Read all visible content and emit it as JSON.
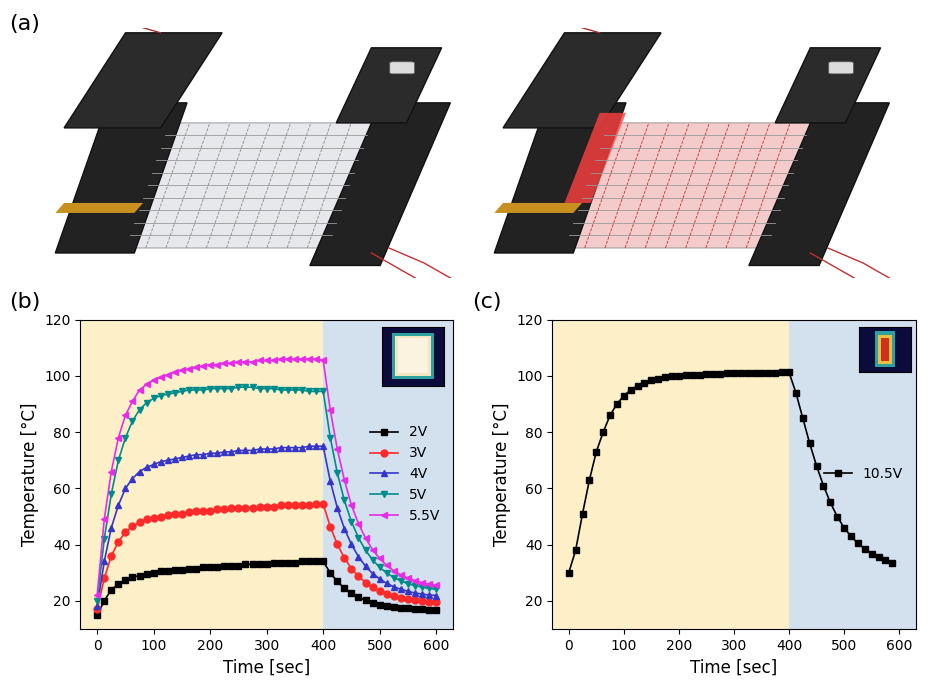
{
  "diagram": {
    "panel_label": "(a)"
  },
  "chart_data": [
    {
      "type": "line",
      "panel_label": "(b)",
      "x_label": "Time [sec]",
      "y_label": "Temperature [°C]",
      "x": [
        0,
        12.5,
        25,
        37.5,
        50,
        62.5,
        75,
        87.5,
        100,
        112.5,
        125,
        137.5,
        150,
        162.5,
        175,
        187.5,
        200,
        212.5,
        225,
        237.5,
        250,
        262.5,
        275,
        287.5,
        300,
        312.5,
        325,
        337.5,
        350,
        362.5,
        375,
        387.5,
        400,
        412.5,
        425,
        437.5,
        450,
        462.5,
        475,
        487.5,
        500,
        512.5,
        525,
        537.5,
        550,
        562.5,
        575,
        587.5,
        600
      ],
      "phase_boundary": 400,
      "xlim": [
        -30,
        630
      ],
      "xticks": [
        0,
        100,
        200,
        300,
        400,
        500,
        600
      ],
      "ylim": [
        10,
        120
      ],
      "yticks": [
        20,
        40,
        60,
        80,
        100,
        120
      ],
      "legend": "center right",
      "series": [
        {
          "name": "2V",
          "color": "#000000",
          "marker": "square",
          "line_style": "solid",
          "values": [
            15,
            20,
            24,
            26,
            27.5,
            28.5,
            29,
            29.5,
            30,
            30.5,
            30.5,
            31,
            31,
            31.5,
            31.5,
            32,
            32,
            32,
            32.5,
            32.5,
            32.5,
            33,
            33,
            33,
            33,
            33.5,
            33.5,
            33.5,
            33.5,
            34,
            34,
            34,
            34,
            30,
            26.9,
            24.5,
            22.7,
            21.3,
            20.2,
            19.3,
            18.7,
            18.2,
            17.8,
            17.5,
            17.3,
            17.1,
            17,
            16.9,
            16.8
          ]
        },
        {
          "name": "3V",
          "color": "#ff2a2a",
          "marker": "circle",
          "line_style": "solid",
          "values": [
            17,
            28,
            36,
            41,
            44.5,
            46.5,
            48,
            49,
            49.5,
            50,
            50.5,
            51,
            51,
            51.5,
            52,
            52,
            52,
            52.5,
            52.5,
            53,
            53,
            53,
            53,
            53.5,
            53.5,
            53.5,
            54,
            54,
            54,
            54,
            54,
            54.5,
            54.5,
            46.4,
            40.1,
            35.3,
            31.5,
            28.7,
            26.5,
            24.8,
            23.4,
            22.4,
            21.6,
            21,
            20.6,
            20.2,
            19.9,
            19.7,
            19.6
          ]
        },
        {
          "name": "4V",
          "color": "#3535c8",
          "marker": "triangle_up",
          "line_style": "solid",
          "values": [
            18,
            34,
            46,
            54,
            60,
            63.5,
            66,
            67.5,
            68.5,
            69.5,
            70,
            70.5,
            71,
            71.5,
            72,
            72,
            72.5,
            72.5,
            73,
            73,
            73.5,
            73.5,
            73.5,
            74,
            74,
            74,
            74.5,
            74.5,
            74.5,
            74.5,
            75,
            75,
            75,
            62.6,
            53.1,
            45.7,
            40.1,
            35.7,
            32.3,
            29.7,
            27.8,
            26.2,
            25,
            24.1,
            23.4,
            22.8,
            22.4,
            22.1,
            21.9
          ]
        },
        {
          "name": "5V",
          "color": "#008b8b",
          "marker": "triangle_down",
          "line_style": "solid",
          "values": [
            20,
            42,
            58,
            70,
            78,
            84,
            88,
            90.5,
            92,
            93,
            93.5,
            94,
            94.5,
            95,
            95,
            95,
            95.5,
            95.5,
            95.5,
            95.5,
            96,
            96,
            96,
            95.5,
            95.5,
            95.5,
            95,
            95,
            95,
            95,
            94.5,
            94.5,
            94.5,
            78.1,
            65.5,
            55.7,
            48.2,
            42.4,
            38,
            34.6,
            31.9,
            29.9,
            28.3,
            27.1,
            26.1,
            25.4,
            24.9,
            24.4,
            24.1
          ]
        },
        {
          "name": "5.5V",
          "color": "#e62ce6",
          "marker": "triangle_left",
          "line_style": "solid",
          "values": [
            22,
            49,
            66,
            78,
            86,
            91,
            95,
            97,
            98.5,
            99.5,
            100.5,
            101.5,
            102,
            102.5,
            103,
            103.5,
            104,
            104,
            104.5,
            104.5,
            105,
            105,
            105,
            105.5,
            105.5,
            105.5,
            106,
            106,
            106,
            106,
            106,
            106,
            105.5,
            88,
            74,
            63,
            54,
            47.5,
            42.3,
            38.2,
            35.1,
            32.6,
            30.7,
            29.2,
            28.1,
            27.2,
            26.5,
            25.9,
            25.5
          ]
        }
      ]
    },
    {
      "type": "line",
      "panel_label": "(c)",
      "x_label": "Time [sec]",
      "y_label": "Temperature [°C]",
      "x": [
        0,
        12.5,
        25,
        37.5,
        50,
        62.5,
        75,
        87.5,
        100,
        112.5,
        125,
        137.5,
        150,
        162.5,
        175,
        187.5,
        200,
        212.5,
        225,
        237.5,
        250,
        262.5,
        275,
        287.5,
        300,
        312.5,
        325,
        337.5,
        350,
        362.5,
        375,
        387.5,
        400,
        412.5,
        425,
        437.5,
        450,
        462.5,
        475,
        487.5,
        500,
        512.5,
        525,
        537.5,
        550,
        562.5,
        575,
        587.5
      ],
      "phase_boundary": 400,
      "xlim": [
        -30,
        630
      ],
      "xticks": [
        0,
        100,
        200,
        300,
        400,
        500,
        600
      ],
      "ylim": [
        10,
        120
      ],
      "yticks": [
        20,
        40,
        60,
        80,
        100,
        120
      ],
      "legend": "center right",
      "series": [
        {
          "name": "10.5V",
          "color": "#000000",
          "marker": "square",
          "line_style": "solid",
          "values": [
            30,
            38,
            51,
            63,
            73,
            80,
            86,
            90,
            93,
            95,
            96.5,
            97.5,
            98.5,
            99,
            99.5,
            99.8,
            100,
            100.2,
            100.4,
            100.5,
            100.6,
            100.7,
            100.8,
            100.9,
            101,
            101,
            101,
            101,
            101.1,
            101.2,
            101.2,
            101.3,
            101.3,
            94,
            85,
            76,
            68,
            61,
            55,
            50,
            46,
            43,
            40.5,
            38.5,
            36.8,
            35.5,
            34.5,
            33.6
          ]
        }
      ]
    }
  ]
}
